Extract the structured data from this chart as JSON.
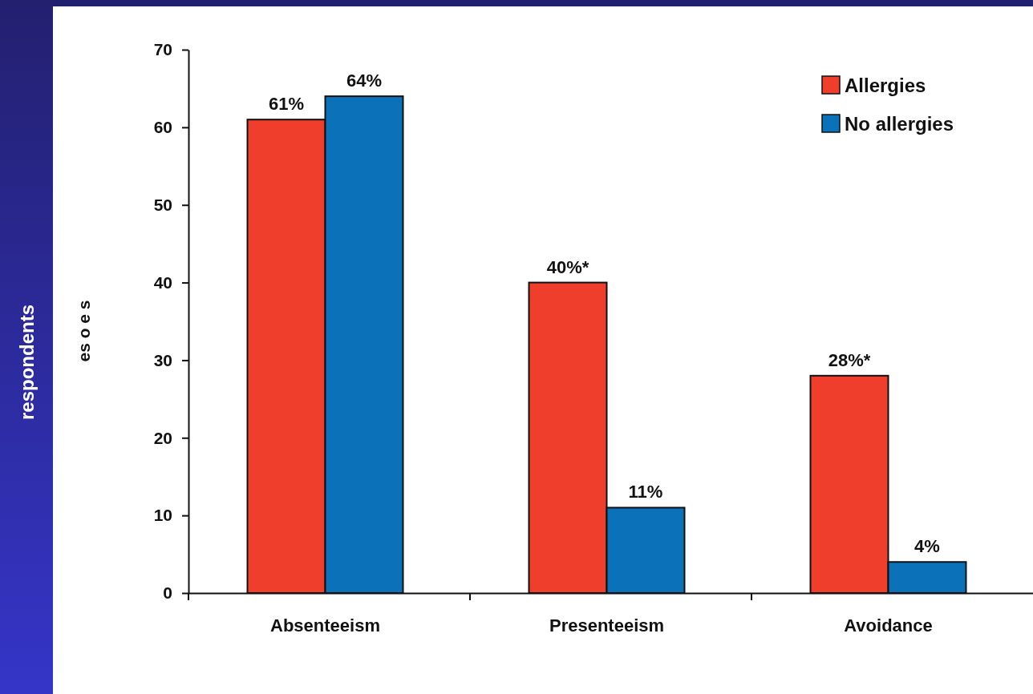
{
  "chart_data": {
    "type": "bar",
    "ylabel": "es o e s",
    "annotations": [
      "respondents"
    ],
    "categories": [
      "Absenteeism",
      "Presenteeism",
      "Avoidance"
    ],
    "series": [
      {
        "name": "Allergies",
        "color": "#ef3e2b",
        "values": [
          61,
          40,
          28
        ],
        "value_labels": [
          "61%",
          "40%*",
          "28%*"
        ]
      },
      {
        "name": "No allergies",
        "color": "#0b72b9",
        "values": [
          64,
          11,
          4
        ],
        "value_labels": [
          "64%",
          "11%",
          "4%"
        ]
      }
    ],
    "ylim": [
      0,
      70
    ],
    "yticks": [
      0,
      10,
      20,
      30,
      40,
      50,
      60,
      70
    ],
    "grid": false,
    "legend": "top right"
  }
}
